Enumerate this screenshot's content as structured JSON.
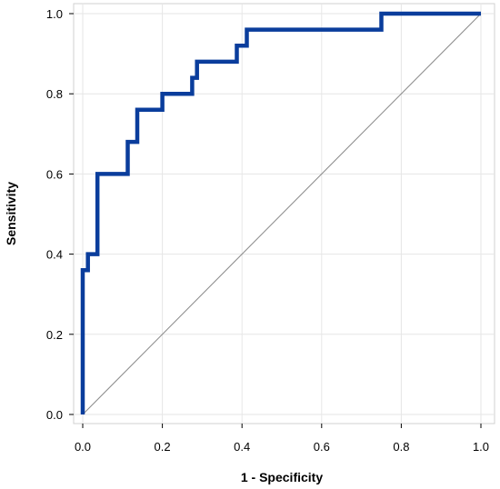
{
  "chart_data": {
    "type": "line",
    "title": "",
    "xlabel": "1 - Specificity",
    "ylabel": "Sensitivity",
    "xlim": [
      0,
      1
    ],
    "ylim": [
      0,
      1
    ],
    "x_ticks": [
      "0.0",
      "0.2",
      "0.4",
      "0.6",
      "0.8",
      "1.0"
    ],
    "y_ticks": [
      "0.0",
      "0.2",
      "0.4",
      "0.6",
      "0.8",
      "1.0"
    ],
    "grid": true,
    "series": [
      {
        "color": "#0a3d9c",
        "points": [
          [
            0.0,
            0.0
          ],
          [
            0.0,
            0.36
          ],
          [
            0.013,
            0.36
          ],
          [
            0.013,
            0.4
          ],
          [
            0.037,
            0.4
          ],
          [
            0.037,
            0.6
          ],
          [
            0.113,
            0.6
          ],
          [
            0.113,
            0.68
          ],
          [
            0.137,
            0.68
          ],
          [
            0.137,
            0.76
          ],
          [
            0.2,
            0.76
          ],
          [
            0.2,
            0.8
          ],
          [
            0.275,
            0.8
          ],
          [
            0.275,
            0.84
          ],
          [
            0.287,
            0.84
          ],
          [
            0.287,
            0.88
          ],
          [
            0.387,
            0.88
          ],
          [
            0.387,
            0.92
          ],
          [
            0.412,
            0.92
          ],
          [
            0.412,
            0.96
          ],
          [
            0.75,
            0.96
          ],
          [
            0.75,
            1.0
          ],
          [
            1.0,
            1.0
          ]
        ]
      }
    ],
    "reference_line": {
      "color": "#8a8a8a",
      "points": [
        [
          0,
          0
        ],
        [
          1,
          1
        ]
      ]
    }
  }
}
